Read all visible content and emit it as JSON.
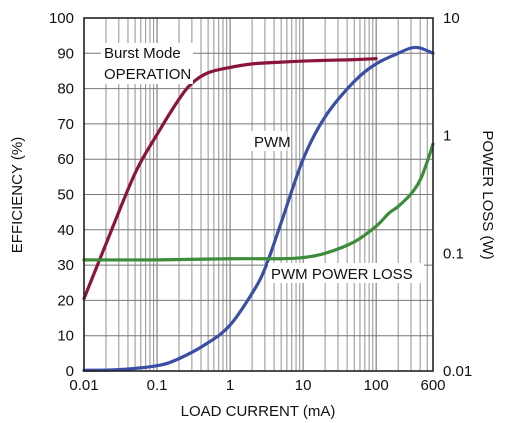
{
  "chart_data": {
    "type": "line",
    "xlabel": "LOAD CURRENT (mA)",
    "ylabel": "EFFICIENCY (%)",
    "ylabel_right": "POWER LOSS (W)",
    "x_scale": "log",
    "xlim": [
      0.01,
      600
    ],
    "ylim": [
      0,
      100
    ],
    "y2_scale": "log",
    "y2lim": [
      0.01,
      10
    ],
    "grid": true,
    "x_tick_labels": [
      "0.01",
      "0.1",
      "1",
      "10",
      "100",
      "600"
    ],
    "y_tick_labels": [
      "0",
      "10",
      "20",
      "30",
      "40",
      "50",
      "60",
      "70",
      "80",
      "90",
      "100"
    ],
    "y2_tick_labels": [
      "0.01",
      "0.1",
      "1",
      "10"
    ],
    "annotations": [
      "Burst Mode",
      "OPERATION",
      "PWM",
      "PWM POWER LOSS"
    ],
    "colors": {
      "burst": "#8b1538",
      "pwm": "#3b4ea6",
      "loss": "#3c8c3c",
      "grid": "#777777"
    },
    "series": [
      {
        "axis": "left",
        "color": "#8b1538",
        "x": [
          0.01,
          0.02,
          0.05,
          0.1,
          0.2,
          0.3,
          0.5,
          1,
          2,
          5,
          10,
          20,
          50,
          100
        ],
        "y": [
          20.5,
          36,
          56,
          67,
          77,
          81.5,
          84.5,
          86,
          87,
          87.5,
          87.8,
          88,
          88.2,
          88.5
        ]
      },
      {
        "axis": "left",
        "color": "#3b4ea6",
        "x": [
          0.01,
          0.03,
          0.1,
          0.2,
          0.5,
          1,
          2,
          3,
          5,
          10,
          20,
          50,
          100,
          200,
          300,
          400,
          600
        ],
        "y": [
          0.2,
          0.4,
          1.5,
          3.5,
          8,
          13,
          22,
          29,
          42,
          60,
          72,
          82,
          87,
          90,
          91.5,
          91.5,
          90
        ]
      },
      {
        "axis": "right",
        "color": "#3c8c3c",
        "x": [
          0.01,
          0.1,
          1,
          5,
          10,
          20,
          50,
          100,
          150,
          200,
          300,
          400,
          500,
          600
        ],
        "y": [
          0.088,
          0.088,
          0.09,
          0.09,
          0.092,
          0.1,
          0.125,
          0.17,
          0.22,
          0.25,
          0.32,
          0.42,
          0.6,
          0.85
        ]
      }
    ]
  }
}
